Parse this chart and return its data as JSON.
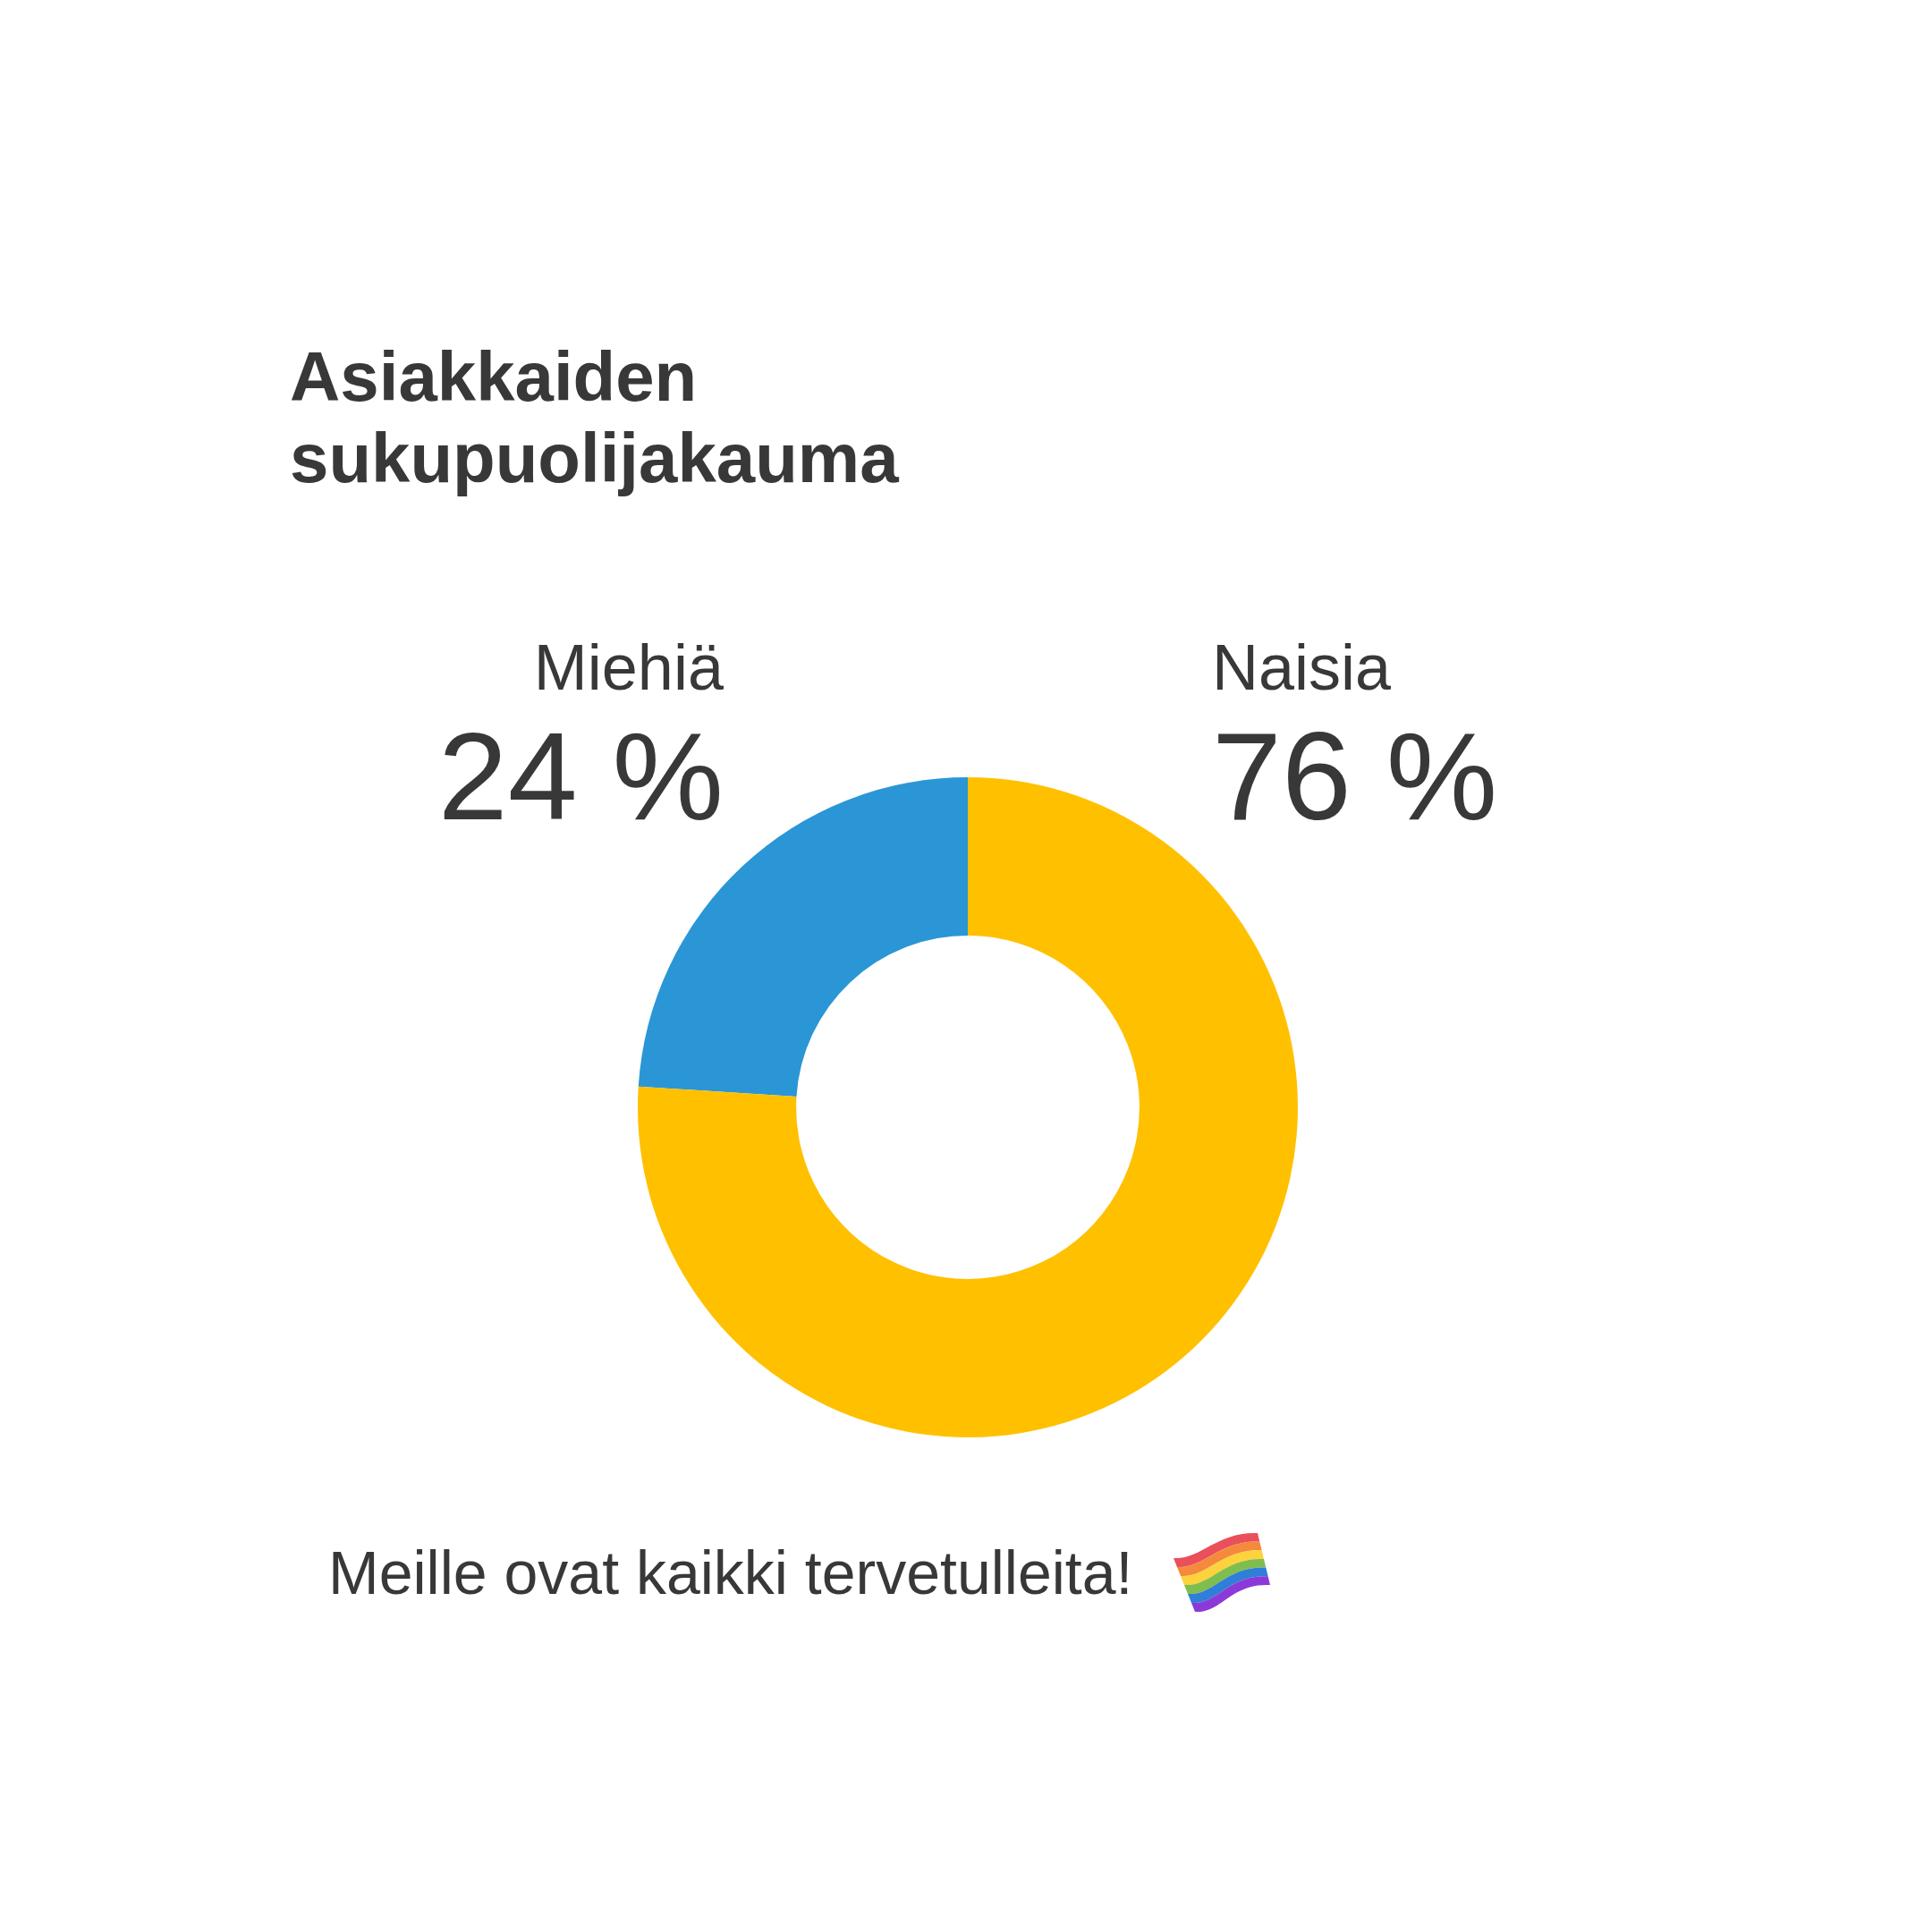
{
  "chart_data": {
    "type": "donut",
    "title": "Asiakkaiden sukupuolijakauma",
    "categories": [
      "Miehiä",
      "Naisia"
    ],
    "values": [
      24,
      76
    ],
    "colors": [
      "#2a96d6",
      "#ffc000"
    ],
    "value_labels": [
      "24 %",
      "76 %"
    ],
    "annotations": [
      "Meille ovat kaikki tervetulleita!"
    ]
  }
}
